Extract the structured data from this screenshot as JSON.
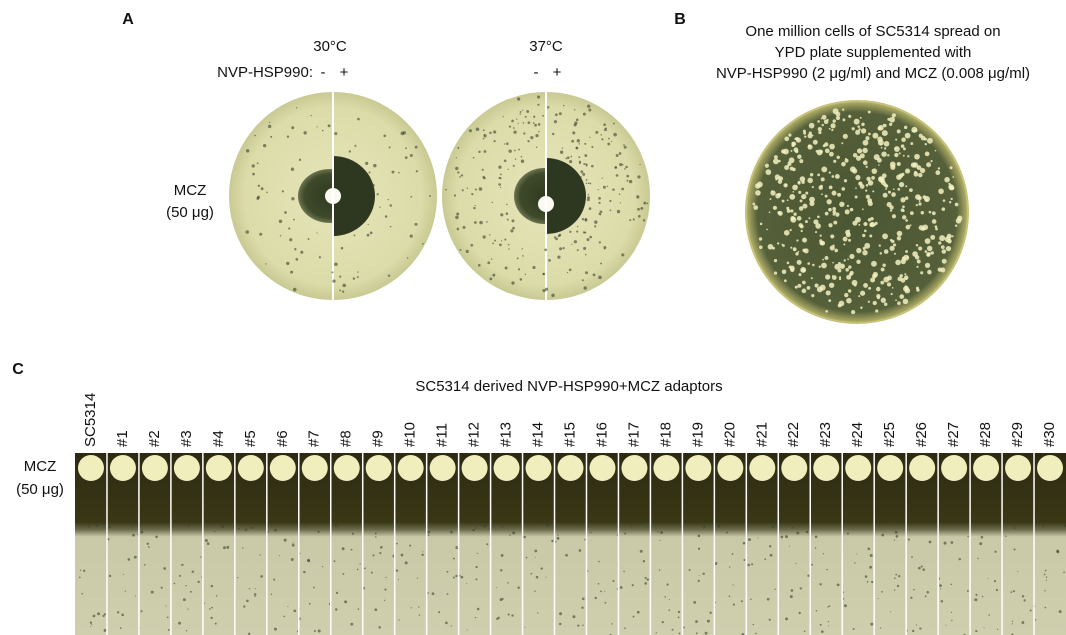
{
  "panel_a": {
    "label": "A",
    "temperatures": [
      "30°C",
      "37°C"
    ],
    "treatment_label": "NVP-HSP990:",
    "conditions": [
      [
        "-",
        "+"
      ],
      [
        "-",
        "+"
      ]
    ],
    "row_label": [
      "MCZ",
      "(50 μg)"
    ]
  },
  "panel_b": {
    "label": "B",
    "caption": [
      "One million cells of SC5314 spread on",
      "YPD plate supplemented with",
      "NVP-HSP990 (2 μg/ml) and MCZ (0.008 μg/ml)"
    ]
  },
  "panel_c": {
    "label": "C",
    "title": "SC5314 derived NVP-HSP990+MCZ adaptors",
    "strains": [
      "SC5314",
      "#1",
      "#2",
      "#3",
      "#4",
      "#5",
      "#6",
      "#7",
      "#8",
      "#9",
      "#10",
      "#11",
      "#12",
      "#13",
      "#14",
      "#15",
      "#16",
      "#17",
      "#18",
      "#19",
      "#20",
      "#21",
      "#22",
      "#23",
      "#24",
      "#25",
      "#26",
      "#27",
      "#28",
      "#29",
      "#30"
    ],
    "row_label": [
      "MCZ",
      "(50 μg)"
    ]
  }
}
